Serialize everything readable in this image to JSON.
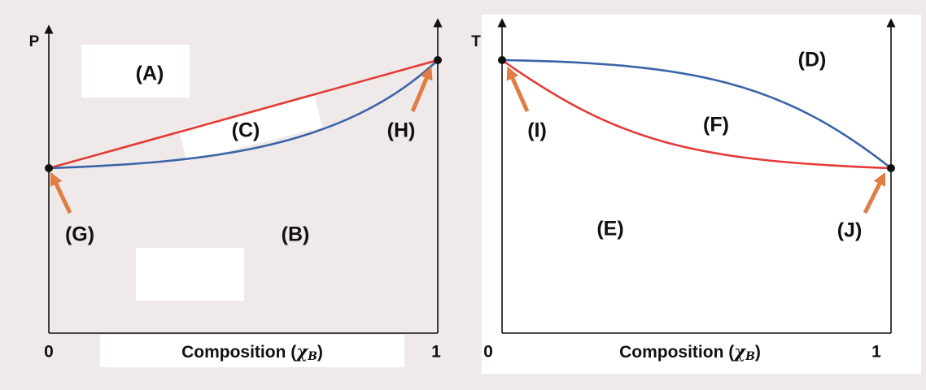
{
  "left_panel": {
    "y_label": "P",
    "regions": {
      "A": "(A)",
      "B": "(B)",
      "C": "(C)"
    },
    "points": {
      "G": "(G)",
      "H": "(H)"
    },
    "x_ticks": [
      "0",
      "1"
    ],
    "x_label": {
      "text": "Composition (",
      "symbol": "χ",
      "subscript": "B",
      "close": ")"
    }
  },
  "right_panel": {
    "y_label": "T",
    "regions": {
      "D": "(D)",
      "E": "(E)",
      "F": "(F)"
    },
    "points": {
      "I": "(I)",
      "J": "(J)"
    },
    "x_ticks": [
      "0",
      "1"
    ],
    "x_label": {
      "text": "Composition (",
      "symbol": "χ",
      "subscript": "B",
      "close": ")"
    }
  }
}
